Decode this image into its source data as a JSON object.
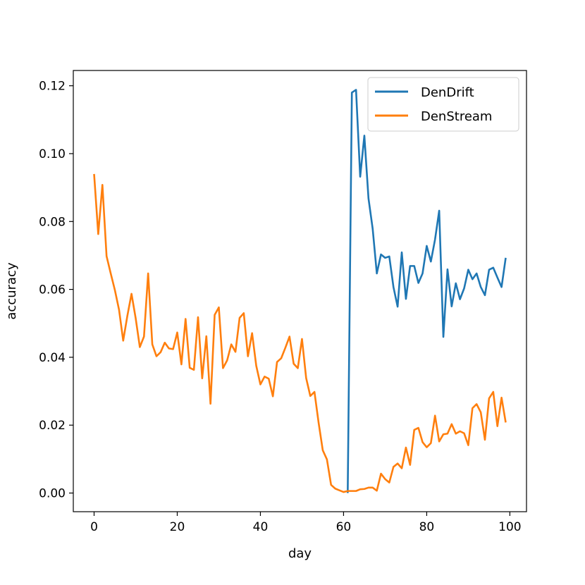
{
  "chart_data": {
    "type": "line",
    "xlabel": "day",
    "ylabel": "accuracy",
    "xlim": [
      -5,
      104
    ],
    "ylim": [
      -0.0055,
      0.1245
    ],
    "xticks": [
      0,
      20,
      40,
      60,
      80,
      100
    ],
    "yticks": [
      0.0,
      0.02,
      0.04,
      0.06,
      0.08,
      0.1,
      0.12
    ],
    "xtick_labels": [
      "0",
      "20",
      "40",
      "60",
      "80",
      "100"
    ],
    "ytick_labels": [
      "0.00",
      "0.02",
      "0.04",
      "0.06",
      "0.08",
      "0.10",
      "0.12"
    ],
    "grid": false,
    "legend_position": "top-right",
    "series": [
      {
        "name": "DenDrift",
        "color": "#1f77b4",
        "x": [
          61,
          62,
          63,
          64,
          65,
          66,
          67,
          68,
          69,
          70,
          71,
          72,
          73,
          74,
          75,
          76,
          77,
          78,
          79,
          80,
          81,
          82,
          83,
          84,
          85,
          86,
          87,
          88,
          89,
          90,
          91,
          92,
          93,
          94,
          95,
          96,
          97,
          98,
          99
        ],
        "y": [
          0.0,
          0.118,
          0.1188,
          0.0932,
          0.1053,
          0.0868,
          0.0779,
          0.0647,
          0.0703,
          0.0693,
          0.0697,
          0.0607,
          0.0549,
          0.0709,
          0.0572,
          0.0669,
          0.0669,
          0.0619,
          0.0647,
          0.0728,
          0.0682,
          0.0747,
          0.0832,
          0.046,
          0.0659,
          0.055,
          0.0618,
          0.0571,
          0.0603,
          0.0658,
          0.063,
          0.0647,
          0.0607,
          0.0583,
          0.0658,
          0.0664,
          0.0635,
          0.0607,
          0.0693
        ]
      },
      {
        "name": "DenStream",
        "color": "#ff7f0e",
        "x": [
          0,
          1,
          2,
          3,
          4,
          5,
          6,
          7,
          8,
          9,
          10,
          11,
          12,
          13,
          14,
          15,
          16,
          17,
          18,
          19,
          20,
          21,
          22,
          23,
          24,
          25,
          26,
          27,
          28,
          29,
          30,
          31,
          32,
          33,
          34,
          35,
          36,
          37,
          38,
          39,
          40,
          41,
          42,
          43,
          44,
          45,
          46,
          47,
          48,
          49,
          50,
          51,
          52,
          53,
          54,
          55,
          56,
          57,
          58,
          59,
          60,
          61,
          62,
          63,
          64,
          65,
          66,
          67,
          68,
          69,
          70,
          71,
          72,
          73,
          74,
          75,
          76,
          77,
          78,
          79,
          80,
          81,
          82,
          83,
          84,
          85,
          86,
          87,
          88,
          89,
          90,
          91,
          92,
          93,
          94,
          95,
          96,
          97,
          98,
          99
        ],
        "y": [
          0.094,
          0.0763,
          0.0908,
          0.0698,
          0.0647,
          0.0598,
          0.054,
          0.0449,
          0.0522,
          0.0587,
          0.0515,
          0.043,
          0.0461,
          0.0647,
          0.0438,
          0.0403,
          0.0415,
          0.0443,
          0.0426,
          0.0424,
          0.0473,
          0.0379,
          0.0513,
          0.0369,
          0.0363,
          0.0518,
          0.0338,
          0.0462,
          0.0263,
          0.0525,
          0.0547,
          0.0368,
          0.0391,
          0.0438,
          0.0416,
          0.0516,
          0.053,
          0.0403,
          0.0471,
          0.0375,
          0.032,
          0.0343,
          0.0337,
          0.0285,
          0.0386,
          0.0397,
          0.0428,
          0.0461,
          0.0381,
          0.0368,
          0.0454,
          0.0339,
          0.0286,
          0.0298,
          0.0207,
          0.0126,
          0.0099,
          0.0024,
          0.0013,
          0.0008,
          0.0003,
          0.0006,
          0.0006,
          0.0006,
          0.0011,
          0.0012,
          0.0016,
          0.0016,
          0.0007,
          0.0057,
          0.0041,
          0.0031,
          0.0077,
          0.0087,
          0.0073,
          0.0134,
          0.0083,
          0.0186,
          0.0192,
          0.015,
          0.0135,
          0.0147,
          0.0228,
          0.0152,
          0.0173,
          0.0175,
          0.0203,
          0.0175,
          0.0182,
          0.0176,
          0.0141,
          0.025,
          0.0262,
          0.0238,
          0.0157,
          0.0279,
          0.0298,
          0.0197,
          0.0281,
          0.0208
        ]
      }
    ]
  }
}
